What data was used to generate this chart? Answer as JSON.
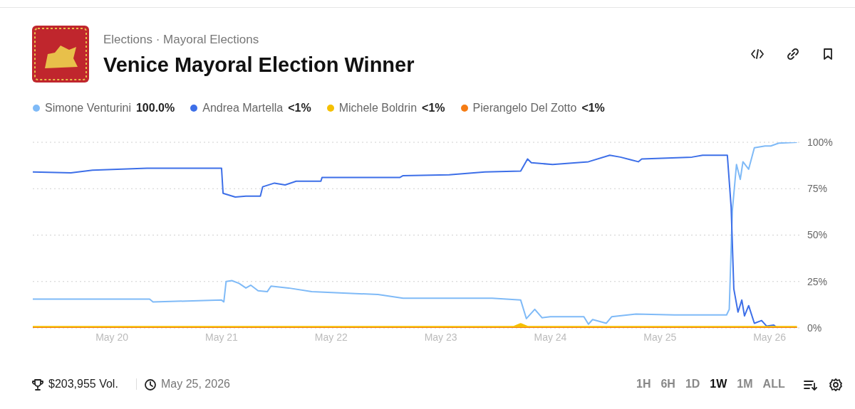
{
  "chart_data": {
    "type": "line",
    "title": "Venice Mayoral Election Winner",
    "subtitle": "Elections · Mayoral Elections",
    "series": [
      {
        "name": "Simone Venturini",
        "color": "#7fbaf7",
        "x": [
          "2026-05-19T06:40",
          "2026-05-20T08:15",
          "2026-05-20T09:00",
          "2026-05-21T00:00",
          "2026-05-21T00:30",
          "2026-05-21T01:00",
          "2026-05-21T02:15",
          "2026-05-21T03:50",
          "2026-05-21T05:20",
          "2026-05-21T06:25",
          "2026-05-21T08:00",
          "2026-05-21T10:00",
          "2026-05-21T10:50",
          "2026-05-21T14:40",
          "2026-05-21T19:45",
          "2026-05-22T10:15",
          "2026-05-22T15:45",
          "2026-05-23T11:15",
          "2026-05-23T17:30",
          "2026-05-23T18:45",
          "2026-05-23T20:35",
          "2026-05-23T22:10",
          "2026-05-24T00:00",
          "2026-05-24T07:20",
          "2026-05-24T08:20",
          "2026-05-24T09:15",
          "2026-05-24T12:15",
          "2026-05-24T13:25",
          "2026-05-24T18:45",
          "2026-05-25T03:10",
          "2026-05-25T14:35",
          "2026-05-25T15:10",
          "2026-05-25T15:50",
          "2026-05-25T16:45",
          "2026-05-25T17:35",
          "2026-05-25T18:10",
          "2026-05-25T19:25",
          "2026-05-25T20:40",
          "2026-05-25T23:00",
          "2026-05-26T00:15",
          "2026-05-26T02:00",
          "2026-05-26T06:00"
        ],
        "values": [
          15.5,
          15.5,
          14,
          15,
          14,
          25,
          25.5,
          24,
          21.5,
          23,
          20,
          19.5,
          22.5,
          21.5,
          19.5,
          18,
          16,
          16,
          15,
          5,
          10,
          5.5,
          6,
          6,
          2,
          4.5,
          2.5,
          6,
          7.5,
          7,
          7,
          10,
          63,
          88,
          80,
          89.5,
          85.5,
          97,
          98,
          98,
          99.5,
          100
        ]
      },
      {
        "name": "Andrea Martella",
        "color": "#3d6fe8",
        "x": [
          "2026-05-19T06:40",
          "2026-05-19T15:00",
          "2026-05-19T19:45",
          "2026-05-20T07:40",
          "2026-05-20T09:50",
          "2026-05-21T00:00",
          "2026-05-21T00:20",
          "2026-05-21T03:00",
          "2026-05-21T05:20",
          "2026-05-21T08:30",
          "2026-05-21T09:00",
          "2026-05-21T11:35",
          "2026-05-21T13:55",
          "2026-05-21T16:20",
          "2026-05-21T21:45",
          "2026-05-21T22:00",
          "2026-05-22T15:00",
          "2026-05-22T15:45",
          "2026-05-23T01:50",
          "2026-05-23T09:40",
          "2026-05-23T17:30",
          "2026-05-23T19:00",
          "2026-05-23T19:50",
          "2026-05-24T00:30",
          "2026-05-24T08:20",
          "2026-05-24T13:00",
          "2026-05-24T15:20",
          "2026-05-24T17:40",
          "2026-05-24T19:15",
          "2026-05-24T20:00",
          "2026-05-25T07:00",
          "2026-05-25T09:20",
          "2026-05-25T14:45",
          "2026-05-25T15:35",
          "2026-05-25T16:10",
          "2026-05-25T17:05",
          "2026-05-25T17:55",
          "2026-05-25T18:30",
          "2026-05-25T19:25",
          "2026-05-25T20:40",
          "2026-05-25T22:15",
          "2026-05-25T23:20",
          "2026-05-26T00:55",
          "2026-05-26T01:40",
          "2026-05-26T06:00"
        ],
        "values": [
          84,
          83.5,
          85,
          86,
          86,
          86,
          72.5,
          70.5,
          71,
          71,
          76,
          78,
          77,
          79,
          79,
          81,
          81,
          82,
          82.5,
          84,
          84.5,
          91,
          89,
          88,
          89.5,
          93,
          92,
          90.5,
          89.5,
          91,
          92,
          93,
          93,
          65,
          21,
          8.5,
          15,
          6.5,
          12,
          2.5,
          4,
          1,
          1.5,
          0,
          0
        ]
      },
      {
        "name": "Michele Boldrin",
        "color": "#f5c000",
        "x": [
          "2026-05-19T06:40",
          "2026-05-23T16:00",
          "2026-05-23T17:30",
          "2026-05-23T19:00",
          "2026-05-26T06:00"
        ],
        "values": [
          0,
          0,
          1.5,
          0,
          0
        ]
      },
      {
        "name": "Pierangelo Del Zotto",
        "color": "#f57c14",
        "x": [
          "2026-05-19T06:40",
          "2026-05-26T06:00"
        ],
        "values": [
          0,
          0
        ]
      }
    ],
    "xlim": [
      "2026-05-19T06:40",
      "2026-05-26T07:00"
    ],
    "xticks": [
      {
        "value": "2026-05-20",
        "label": "May 20"
      },
      {
        "value": "2026-05-21",
        "label": "May 21"
      },
      {
        "value": "2026-05-22",
        "label": "May 22"
      },
      {
        "value": "2026-05-23",
        "label": "May 23"
      },
      {
        "value": "2026-05-24",
        "label": "May 24"
      },
      {
        "value": "2026-05-25",
        "label": "May 25"
      },
      {
        "value": "2026-05-26",
        "label": "May 26"
      }
    ],
    "ylim": [
      0,
      100
    ],
    "yticks": [
      {
        "value": 0,
        "label": "0%"
      },
      {
        "value": 25,
        "label": "25%"
      },
      {
        "value": 50,
        "label": "50%"
      },
      {
        "value": 75,
        "label": "75%"
      },
      {
        "value": 100,
        "label": "100%"
      }
    ],
    "grid": "y",
    "legend": "top left",
    "marker": "none",
    "line_style": "solid",
    "annotations": [
      "100.0%",
      "<1%",
      "<1%",
      "<1%",
      "$203,955 Vol.",
      "May 25, 2026",
      "1H",
      "6H",
      "1D",
      "1W",
      "1M",
      "ALL"
    ]
  }
}
